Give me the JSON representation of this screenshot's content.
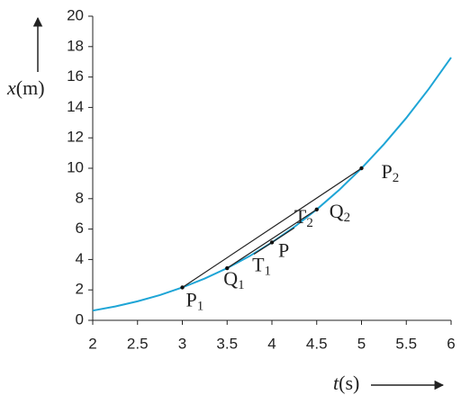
{
  "chart_data": {
    "type": "line",
    "ylabel": {
      "var": "x",
      "unit": "(m)"
    },
    "xlabel": {
      "var": "t",
      "unit": "(s)"
    },
    "xlim": [
      2,
      6
    ],
    "ylim": [
      0,
      20
    ],
    "xticks": [
      2,
      2.5,
      3,
      3.5,
      4,
      4.5,
      5,
      5.5,
      6
    ],
    "yticks": [
      0,
      2,
      4,
      6,
      8,
      10,
      12,
      14,
      16,
      18,
      20
    ],
    "series": [
      {
        "color": "#1ea5d6",
        "x": [
          2,
          2.25,
          2.5,
          2.75,
          3,
          3.25,
          3.5,
          3.75,
          4,
          4.25,
          4.5,
          4.75,
          5,
          5.25,
          5.5,
          5.75,
          6
        ],
        "values": [
          0.64,
          0.91,
          1.25,
          1.66,
          2.16,
          2.75,
          3.43,
          4.22,
          5.12,
          6.14,
          7.29,
          8.57,
          10,
          11.58,
          13.31,
          15.21,
          17.28
        ]
      }
    ],
    "points": [
      {
        "label": "P",
        "sub": "1",
        "t": 3,
        "x": 2.16
      },
      {
        "label": "Q",
        "sub": "1",
        "t": 3.5,
        "x": 3.43
      },
      {
        "label": "P",
        "t": 4,
        "x": 5.12
      },
      {
        "label": "Q",
        "sub": "2",
        "t": 4.5,
        "x": 7.29
      },
      {
        "label": "P",
        "sub": "2",
        "t": 5,
        "x": 10
      }
    ],
    "tangent": {
      "t": [
        3.8,
        4.25
      ],
      "values": [
        4.35,
        6.08
      ],
      "labels": [
        {
          "label": "T",
          "sub": "1"
        },
        {
          "label": "T",
          "sub": "2"
        }
      ]
    }
  }
}
